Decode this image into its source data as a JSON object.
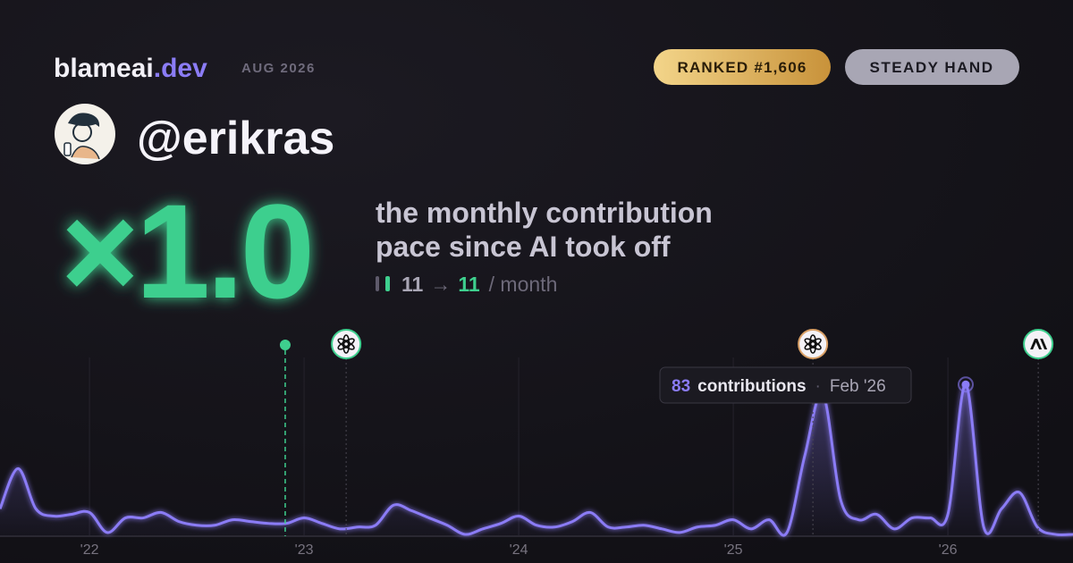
{
  "header": {
    "brand": "blameai",
    "brand_tld": ".dev",
    "date": "AUG 2026",
    "rank": "RANKED #1,606",
    "badge": "STEADY HAND"
  },
  "profile": {
    "username": "@erikras"
  },
  "headline": {
    "multiplier": "×1.0",
    "line1": "the monthly contribution",
    "line2": "pace since AI took off"
  },
  "stats": {
    "before": 11,
    "arrow": "→",
    "after": 11,
    "unit": "/ month"
  },
  "chart_data": {
    "type": "line",
    "color": "#8b7cf6",
    "x": [
      2021.583,
      2021.667,
      2021.75,
      2021.833,
      2021.917,
      2022,
      2022.083,
      2022.167,
      2022.25,
      2022.333,
      2022.417,
      2022.5,
      2022.583,
      2022.667,
      2022.75,
      2022.833,
      2022.917,
      2023,
      2023.083,
      2023.167,
      2023.25,
      2023.333,
      2023.417,
      2023.5,
      2023.583,
      2023.667,
      2023.75,
      2023.833,
      2023.917,
      2024,
      2024.083,
      2024.167,
      2024.25,
      2024.333,
      2024.417,
      2024.5,
      2024.583,
      2024.667,
      2024.75,
      2024.833,
      2024.917,
      2025,
      2025.083,
      2025.167,
      2025.25,
      2025.333,
      2025.417,
      2025.5,
      2025.583,
      2025.667,
      2025.75,
      2025.833,
      2025.917,
      2026,
      2026.083,
      2026.167,
      2026.25,
      2026.333,
      2026.417,
      2026.5,
      2026.583
    ],
    "values": [
      15,
      37,
      15,
      11,
      12,
      13,
      2,
      10,
      10,
      13,
      8,
      6,
      6,
      9,
      8,
      7,
      7,
      10,
      7,
      4,
      5,
      6,
      17,
      14,
      10,
      6,
      1,
      4,
      7,
      11,
      6,
      5,
      8,
      13,
      5,
      5,
      6,
      4,
      2,
      5,
      6,
      9,
      4,
      9,
      2,
      44,
      78,
      20,
      9,
      12,
      4,
      10,
      10,
      12,
      83,
      5,
      15,
      24,
      5,
      1,
      1
    ],
    "xlim": [
      2021.583,
      2026.583
    ],
    "ylim": [
      0,
      90
    ],
    "xticks": [
      {
        "value": 2022,
        "label": "'22"
      },
      {
        "value": 2023,
        "label": "'23"
      },
      {
        "value": 2024,
        "label": "'24"
      },
      {
        "value": 2025,
        "label": "'25"
      },
      {
        "value": 2026,
        "label": "'26"
      }
    ],
    "grid": true,
    "events": [
      {
        "x": 2022.912,
        "color": "#3ecf8e"
      },
      {
        "x": 2023.196,
        "color": "#3ecf8e"
      },
      {
        "x": 2025.371,
        "color": "#d9a066"
      },
      {
        "x": 2026.421,
        "color": "#3ecf8e"
      }
    ],
    "tooltip": {
      "index": 54,
      "unit": "contributions",
      "date": "Feb '26"
    }
  }
}
